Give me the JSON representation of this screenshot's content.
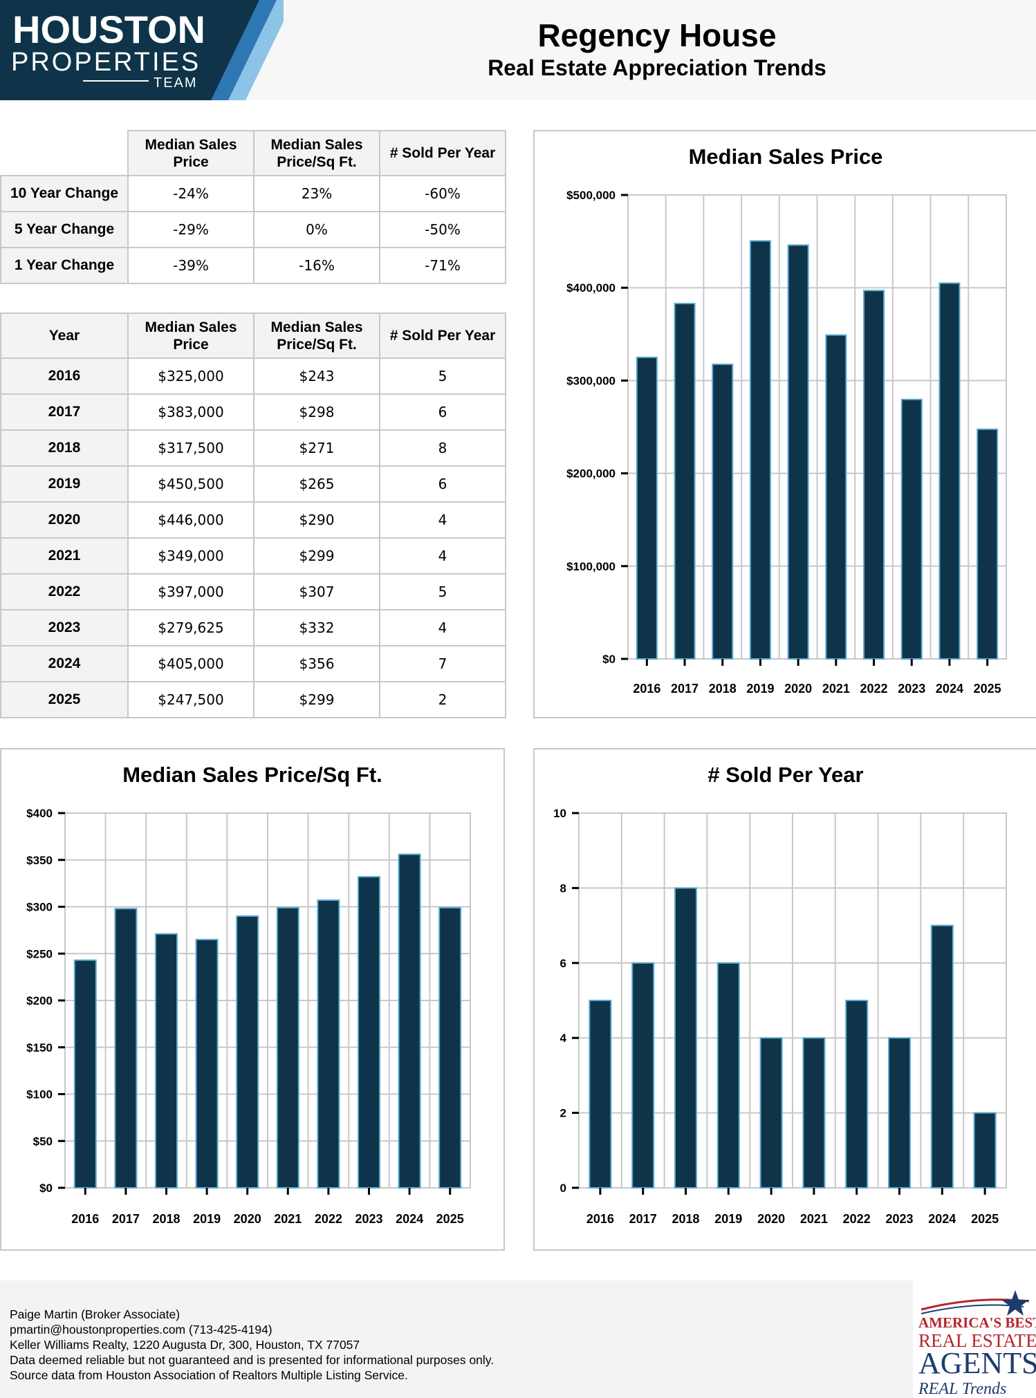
{
  "header": {
    "logo_line1": "HOUSTON",
    "logo_line2": "PROPERTIES",
    "logo_line3": "TEAM",
    "title": "Regency House",
    "subtitle": "Real Estate Appreciation Trends"
  },
  "change_table": {
    "columns": [
      "Median Sales\nPrice",
      "Median Sales\nPrice/Sq Ft.",
      "# Sold Per Year"
    ],
    "rows": [
      {
        "label": "10 Year Change",
        "values": [
          "-24%",
          "23%",
          "-60%"
        ]
      },
      {
        "label": "5 Year Change",
        "values": [
          "-29%",
          "0%",
          "-50%"
        ]
      },
      {
        "label": "1 Year Change",
        "values": [
          "-39%",
          "-16%",
          "-71%"
        ]
      }
    ]
  },
  "yearly_table": {
    "columns": [
      "Year",
      "Median Sales\nPrice",
      "Median Sales\nPrice/Sq Ft.",
      "# Sold Per Year"
    ],
    "rows": [
      [
        "2016",
        "$325,000",
        "$243",
        "5"
      ],
      [
        "2017",
        "$383,000",
        "$298",
        "6"
      ],
      [
        "2018",
        "$317,500",
        "$271",
        "8"
      ],
      [
        "2019",
        "$450,500",
        "$265",
        "6"
      ],
      [
        "2020",
        "$446,000",
        "$290",
        "4"
      ],
      [
        "2021",
        "$349,000",
        "$299",
        "4"
      ],
      [
        "2022",
        "$397,000",
        "$307",
        "5"
      ],
      [
        "2023",
        "$279,625",
        "$332",
        "4"
      ],
      [
        "2024",
        "$405,000",
        "$356",
        "7"
      ],
      [
        "2025",
        "$247,500",
        "$299",
        "2"
      ]
    ]
  },
  "chart_data": [
    {
      "id": "price",
      "type": "bar",
      "title": "Median Sales Price",
      "categories": [
        "2016",
        "2017",
        "2018",
        "2019",
        "2020",
        "2021",
        "2022",
        "2023",
        "2024",
        "2025"
      ],
      "values": [
        325000,
        383000,
        317500,
        450500,
        446000,
        349000,
        397000,
        279625,
        405000,
        247500
      ],
      "ylim": [
        0,
        500000
      ],
      "yticks": [
        "$0",
        "$100,000",
        "$200,000",
        "$300,000",
        "$400,000",
        "$500,000"
      ],
      "grid": true,
      "bar_color": "#0f3349",
      "bar_edge_color": "#5aa9cf"
    },
    {
      "id": "sqft",
      "type": "bar",
      "title": "Median Sales Price/Sq Ft.",
      "categories": [
        "2016",
        "2017",
        "2018",
        "2019",
        "2020",
        "2021",
        "2022",
        "2023",
        "2024",
        "2025"
      ],
      "values": [
        243,
        298,
        271,
        265,
        290,
        299,
        307,
        332,
        356,
        299
      ],
      "ylim": [
        0,
        400
      ],
      "yticks": [
        "$0",
        "$50",
        "$100",
        "$150",
        "$200",
        "$250",
        "$300",
        "$350",
        "$400"
      ],
      "grid": true,
      "bar_color": "#0f3349",
      "bar_edge_color": "#5aa9cf"
    },
    {
      "id": "sold",
      "type": "bar",
      "title": "# Sold Per Year",
      "categories": [
        "2016",
        "2017",
        "2018",
        "2019",
        "2020",
        "2021",
        "2022",
        "2023",
        "2024",
        "2025"
      ],
      "values": [
        5,
        6,
        8,
        6,
        4,
        4,
        5,
        4,
        7,
        2
      ],
      "ylim": [
        0,
        10
      ],
      "yticks": [
        "0",
        "2",
        "4",
        "6",
        "8",
        "10"
      ],
      "grid": true,
      "bar_color": "#0f3349",
      "bar_edge_color": "#5aa9cf"
    }
  ],
  "footer": {
    "lines": [
      "Paige Martin (Broker Associate)",
      "pmartin@houstonproperties.com (713-425-4194)",
      "Keller Williams Realty, 1220 Augusta Dr, 300, Houston, TX 77057",
      "Data deemed reliable but not guaranteed and is presented for informational purposes only.",
      "Source data from Houston Association of Realtors Multiple Listing Service."
    ],
    "badge_line1": "AMERICA'S BEST",
    "badge_line2": "REAL ESTATE",
    "badge_line3": "AGENTS",
    "badge_line4": "REAL Trends"
  },
  "colors": {
    "navy": "#0f3349",
    "accent_blue": "#5aa9cf",
    "badge_red": "#b5242c",
    "badge_navy": "#1d3c6e"
  }
}
